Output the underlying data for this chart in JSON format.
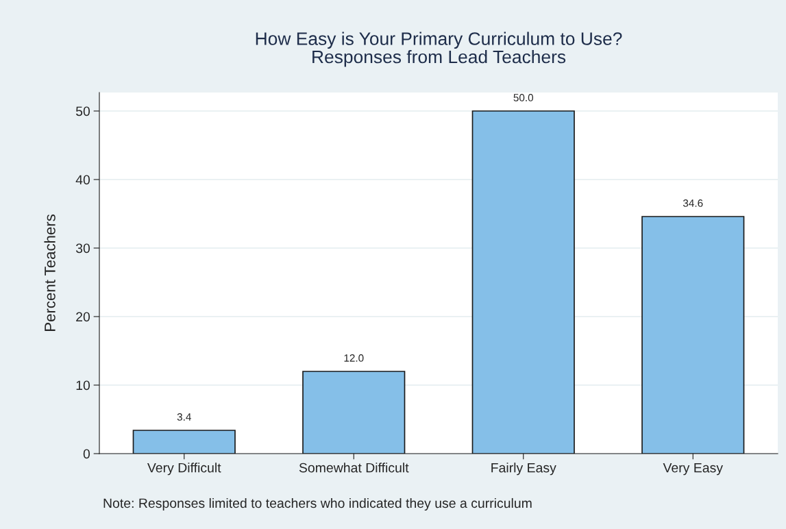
{
  "chart_data": {
    "type": "bar",
    "title": "How Easy is Your Primary Curriculum to Use?\nResponses from Lead Teachers",
    "ylabel": "Percent Teachers",
    "categories": [
      "Very Difficult",
      "Somewhat Difficult",
      "Fairly Easy",
      "Very Easy"
    ],
    "values": [
      3.4,
      12.0,
      50.0,
      34.6
    ],
    "value_labels": [
      "3.4",
      "12.0",
      "50.0",
      "34.6"
    ],
    "color": "#85bfe8",
    "ylim": [
      0,
      52.7
    ],
    "yticks": [
      0,
      10,
      20,
      30,
      40,
      50
    ],
    "grid": "y",
    "legend": false,
    "annotations": [
      "Note: Responses limited to teachers who indicated they use a curriculum"
    ]
  }
}
